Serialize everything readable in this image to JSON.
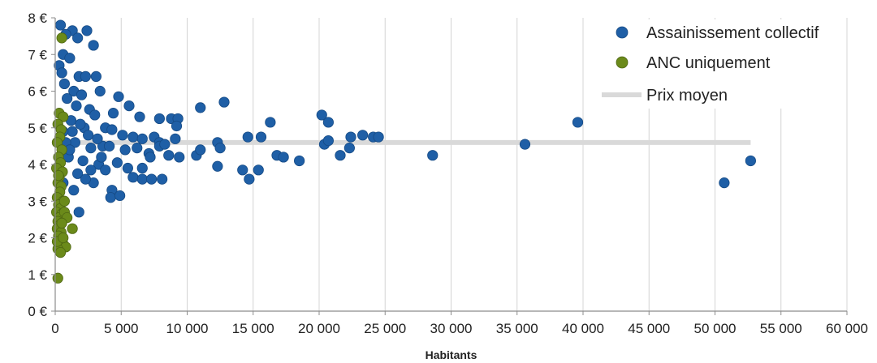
{
  "chart_data": {
    "type": "scatter",
    "xlabel": "Habitants",
    "ylabel": "",
    "xlim": [
      0,
      60000
    ],
    "ylim": [
      0,
      8
    ],
    "x_ticks": [
      0,
      5000,
      10000,
      15000,
      20000,
      25000,
      30000,
      35000,
      40000,
      45000,
      50000,
      55000,
      60000
    ],
    "x_tick_labels": [
      "0",
      "5 000",
      "10 000",
      "15 000",
      "20 000",
      "25 000",
      "30 000",
      "35 000",
      "40 000",
      "45 000",
      "50 000",
      "55 000",
      "60 000"
    ],
    "y_ticks": [
      0,
      1,
      2,
      3,
      4,
      5,
      6,
      7,
      8
    ],
    "y_tick_labels": [
      "0 €",
      "1 €",
      "2 €",
      "3 €",
      "4 €",
      "5 €",
      "6 €",
      "7 €",
      "8 €"
    ],
    "grid": "vertical major gridlines",
    "legend_position": "top-right",
    "series": [
      {
        "name": "Assainissement collectif",
        "color": "#1f5fa6",
        "points": [
          [
            400,
            7.8
          ],
          [
            1300,
            7.65
          ],
          [
            2400,
            7.65
          ],
          [
            800,
            7.55
          ],
          [
            1700,
            7.45
          ],
          [
            2900,
            7.25
          ],
          [
            600,
            7.0
          ],
          [
            1100,
            6.9
          ],
          [
            300,
            6.7
          ],
          [
            1800,
            6.4
          ],
          [
            2300,
            6.4
          ],
          [
            3100,
            6.4
          ],
          [
            500,
            6.5
          ],
          [
            700,
            6.2
          ],
          [
            1400,
            6.0
          ],
          [
            2000,
            5.9
          ],
          [
            3400,
            6.0
          ],
          [
            4800,
            5.85
          ],
          [
            900,
            5.8
          ],
          [
            1600,
            5.6
          ],
          [
            2600,
            5.5
          ],
          [
            5600,
            5.6
          ],
          [
            11000,
            5.55
          ],
          [
            12800,
            5.7
          ],
          [
            3000,
            5.35
          ],
          [
            4400,
            5.4
          ],
          [
            6400,
            5.3
          ],
          [
            7900,
            5.25
          ],
          [
            8800,
            5.25
          ],
          [
            9300,
            5.25
          ],
          [
            16300,
            5.15
          ],
          [
            20200,
            5.35
          ],
          [
            20700,
            5.15
          ],
          [
            39600,
            5.15
          ],
          [
            9200,
            5.05
          ],
          [
            1200,
            5.2
          ],
          [
            2200,
            5.0
          ],
          [
            3800,
            5.0
          ],
          [
            4300,
            4.95
          ],
          [
            5100,
            4.8
          ],
          [
            5900,
            4.75
          ],
          [
            6600,
            4.7
          ],
          [
            7500,
            4.75
          ],
          [
            7900,
            4.6
          ],
          [
            9100,
            4.7
          ],
          [
            12300,
            4.6
          ],
          [
            14600,
            4.75
          ],
          [
            15600,
            4.75
          ],
          [
            20400,
            4.55
          ],
          [
            20700,
            4.65
          ],
          [
            22400,
            4.75
          ],
          [
            23300,
            4.8
          ],
          [
            24100,
            4.75
          ],
          [
            24500,
            4.75
          ],
          [
            35600,
            4.55
          ],
          [
            1500,
            4.6
          ],
          [
            2700,
            4.45
          ],
          [
            3600,
            4.5
          ],
          [
            4100,
            4.5
          ],
          [
            5300,
            4.4
          ],
          [
            6200,
            4.45
          ],
          [
            7100,
            4.3
          ],
          [
            7900,
            4.5
          ],
          [
            8300,
            4.55
          ],
          [
            10700,
            4.25
          ],
          [
            11000,
            4.4
          ],
          [
            12500,
            4.45
          ],
          [
            16800,
            4.25
          ],
          [
            17300,
            4.2
          ],
          [
            21600,
            4.25
          ],
          [
            22300,
            4.45
          ],
          [
            28600,
            4.25
          ],
          [
            52700,
            4.1
          ],
          [
            1000,
            4.2
          ],
          [
            2100,
            4.1
          ],
          [
            3300,
            4.0
          ],
          [
            4700,
            4.05
          ],
          [
            5500,
            3.9
          ],
          [
            6600,
            3.9
          ],
          [
            7200,
            4.2
          ],
          [
            8600,
            4.25
          ],
          [
            9400,
            4.2
          ],
          [
            12300,
            3.95
          ],
          [
            14200,
            3.85
          ],
          [
            15400,
            3.85
          ],
          [
            18500,
            4.1
          ],
          [
            1700,
            3.75
          ],
          [
            2700,
            3.85
          ],
          [
            3800,
            3.85
          ],
          [
            5900,
            3.65
          ],
          [
            6600,
            3.6
          ],
          [
            7300,
            3.6
          ],
          [
            8100,
            3.6
          ],
          [
            14700,
            3.6
          ],
          [
            50700,
            3.5
          ],
          [
            2900,
            3.5
          ],
          [
            4300,
            3.3
          ],
          [
            4200,
            3.1
          ],
          [
            4900,
            3.15
          ],
          [
            1800,
            2.7
          ],
          [
            600,
            3.5
          ],
          [
            1300,
            4.9
          ],
          [
            1900,
            5.1
          ],
          [
            2500,
            4.8
          ],
          [
            3200,
            4.7
          ],
          [
            800,
            4.6
          ],
          [
            1100,
            4.4
          ],
          [
            3500,
            4.2
          ],
          [
            2300,
            3.6
          ],
          [
            1400,
            3.3
          ],
          [
            600,
            4.9
          ]
        ]
      },
      {
        "name": "ANC uniquement",
        "color": "#6b8a1a",
        "points": [
          [
            500,
            7.45
          ],
          [
            300,
            5.4
          ],
          [
            600,
            5.3
          ],
          [
            200,
            5.1
          ],
          [
            450,
            4.95
          ],
          [
            350,
            4.75
          ],
          [
            150,
            4.6
          ],
          [
            500,
            4.4
          ],
          [
            250,
            4.2
          ],
          [
            400,
            4.05
          ],
          [
            100,
            3.9
          ],
          [
            550,
            3.8
          ],
          [
            300,
            3.65
          ],
          [
            200,
            3.5
          ],
          [
            450,
            3.4
          ],
          [
            350,
            3.25
          ],
          [
            150,
            3.1
          ],
          [
            600,
            3.0
          ],
          [
            250,
            2.9
          ],
          [
            400,
            2.8
          ],
          [
            100,
            2.7
          ],
          [
            500,
            2.65
          ],
          [
            300,
            2.55
          ],
          [
            200,
            2.45
          ],
          [
            700,
            2.7
          ],
          [
            900,
            2.55
          ],
          [
            1300,
            2.25
          ],
          [
            350,
            2.35
          ],
          [
            150,
            2.25
          ],
          [
            450,
            2.15
          ],
          [
            250,
            2.05
          ],
          [
            550,
            1.95
          ],
          [
            300,
            1.85
          ],
          [
            650,
            1.8
          ],
          [
            800,
            1.75
          ],
          [
            200,
            1.7
          ],
          [
            400,
            1.6
          ],
          [
            150,
            1.9
          ],
          [
            600,
            2.0
          ],
          [
            500,
            2.4
          ],
          [
            700,
            3.0
          ],
          [
            250,
            3.7
          ],
          [
            200,
            0.9
          ]
        ]
      },
      {
        "name": "Prix moyen",
        "type": "line",
        "color": "#d9d9d9",
        "x": [
          0,
          52700
        ],
        "values": [
          4.6,
          4.6
        ]
      }
    ]
  }
}
